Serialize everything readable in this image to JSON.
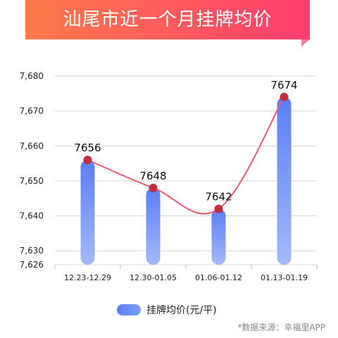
{
  "title": "汕尾市近一个月挂牌均价",
  "source": "*数据来源：幸福里APP",
  "colors": {
    "bar_top": "#5a7ff5",
    "bar_bottom": "#a4b8fb",
    "line": "#ee5b6e",
    "point": "#c0303c"
  },
  "chart_data": {
    "type": "bar",
    "categories": [
      "12.23-12.29",
      "12.30-01.05",
      "01.06-01.12",
      "01.13-01.19"
    ],
    "series": [
      {
        "name": "挂牌均价(元/平)",
        "values": [
          7656,
          7648,
          7642,
          7674
        ]
      }
    ],
    "data_labels": [
      "7656",
      "7648",
      "7642",
      "7674"
    ],
    "yticks": [
      7626,
      7630,
      7640,
      7650,
      7660,
      7670,
      7680
    ],
    "ytick_labels": [
      "7,626",
      "7,630",
      "7,640",
      "7,650",
      "7,660",
      "7,670",
      "7,680"
    ],
    "ylim": [
      7626,
      7680
    ],
    "grid": true,
    "legend": "bottom",
    "overlay": "line"
  }
}
